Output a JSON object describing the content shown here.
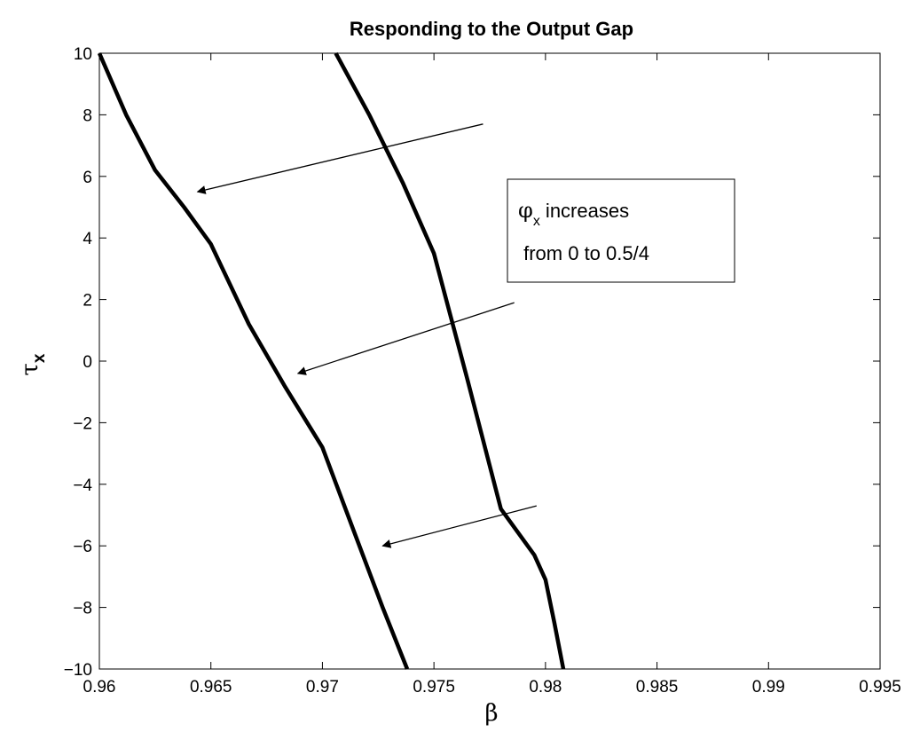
{
  "chart_data": {
    "type": "line",
    "title": "Responding to the Output Gap",
    "xlabel": "β",
    "ylabel": {
      "symbol": "τ",
      "subscript": "x"
    },
    "xlim": [
      0.96,
      0.995
    ],
    "ylim": [
      -10,
      10
    ],
    "xticks": [
      0.96,
      0.965,
      0.97,
      0.975,
      0.98,
      0.985,
      0.99,
      0.995
    ],
    "xtick_labels": [
      "0.96",
      "0.965",
      "0.97",
      "0.975",
      "0.98",
      "0.985",
      "0.99",
      "0.995"
    ],
    "yticks": [
      10,
      8,
      6,
      4,
      2,
      0,
      -2,
      -4,
      -6,
      -8,
      -10
    ],
    "ytick_labels": [
      "10",
      "8",
      "6",
      "4",
      "2",
      "0",
      "−2",
      "−4",
      "−6",
      "−8",
      "−10"
    ],
    "grid": false,
    "series": [
      {
        "x": [
          0.9706,
          0.9721,
          0.9736,
          0.975,
          0.9765,
          0.978,
          0.9795,
          0.98,
          0.9804,
          0.9808
        ],
        "y": [
          10,
          8,
          5.8,
          3.5,
          -0.6,
          -4.8,
          -6.3,
          -7.1,
          -8.5,
          -10
        ]
      },
      {
        "x": [
          0.96,
          0.9612,
          0.9625,
          0.9638,
          0.965,
          0.9667,
          0.9683,
          0.97,
          0.9714,
          0.9727,
          0.9738
        ],
        "y": [
          10,
          8,
          6.2,
          5.0,
          3.8,
          1.2,
          -0.8,
          -2.8,
          -5.5,
          -8.0,
          -10
        ]
      }
    ],
    "arrows": [
      {
        "from": [
          0.9772,
          7.7
        ],
        "to": [
          0.9644,
          5.5
        ]
      },
      {
        "from": [
          0.9786,
          1.9
        ],
        "to": [
          0.9689,
          -0.4
        ]
      },
      {
        "from": [
          0.9796,
          -4.7
        ],
        "to": [
          0.9727,
          -6.0
        ]
      }
    ],
    "annotation": {
      "symbol": "φ",
      "subscript": "x",
      "line1_rest": " increases",
      "line2": " from 0 to 0.5/4"
    }
  }
}
